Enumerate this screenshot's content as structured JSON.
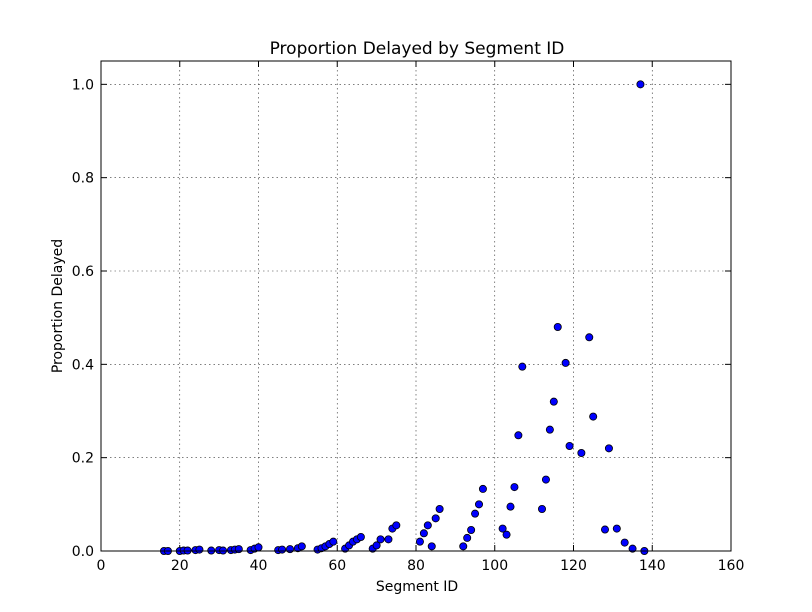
{
  "chart_data": {
    "type": "scatter",
    "title": "Proportion Delayed by Segment ID",
    "xlabel": "Segment ID",
    "ylabel": "Proportion Delayed",
    "xlim": [
      0,
      160
    ],
    "ylim": [
      0.0,
      1.05
    ],
    "xticks": [
      "0",
      "20",
      "40",
      "60",
      "80",
      "100",
      "120",
      "140",
      "160"
    ],
    "yticks": [
      "0.0",
      "0.2",
      "0.4",
      "0.6",
      "0.8",
      "1.0"
    ],
    "grid": true,
    "marker_color": "#0000ff",
    "points": [
      [
        16,
        0.0
      ],
      [
        17,
        0.0
      ],
      [
        20,
        0.0
      ],
      [
        21,
        0.001
      ],
      [
        22,
        0.001
      ],
      [
        24,
        0.002
      ],
      [
        25,
        0.003
      ],
      [
        28,
        0.001
      ],
      [
        30,
        0.002
      ],
      [
        31,
        0.001
      ],
      [
        33,
        0.002
      ],
      [
        34,
        0.003
      ],
      [
        35,
        0.004
      ],
      [
        38,
        0.002
      ],
      [
        39,
        0.005
      ],
      [
        40,
        0.008
      ],
      [
        45,
        0.002
      ],
      [
        46,
        0.003
      ],
      [
        48,
        0.004
      ],
      [
        50,
        0.006
      ],
      [
        51,
        0.01
      ],
      [
        55,
        0.003
      ],
      [
        56,
        0.006
      ],
      [
        57,
        0.01
      ],
      [
        58,
        0.015
      ],
      [
        59,
        0.02
      ],
      [
        62,
        0.005
      ],
      [
        63,
        0.012
      ],
      [
        64,
        0.02
      ],
      [
        65,
        0.025
      ],
      [
        66,
        0.03
      ],
      [
        69,
        0.005
      ],
      [
        70,
        0.012
      ],
      [
        71,
        0.025
      ],
      [
        73,
        0.025
      ],
      [
        74,
        0.048
      ],
      [
        75,
        0.055
      ],
      [
        81,
        0.02
      ],
      [
        82,
        0.038
      ],
      [
        83,
        0.055
      ],
      [
        84,
        0.01
      ],
      [
        85,
        0.07
      ],
      [
        86,
        0.09
      ],
      [
        92,
        0.01
      ],
      [
        93,
        0.028
      ],
      [
        94,
        0.045
      ],
      [
        95,
        0.08
      ],
      [
        96,
        0.1
      ],
      [
        97,
        0.133
      ],
      [
        102,
        0.048
      ],
      [
        103,
        0.035
      ],
      [
        104,
        0.095
      ],
      [
        105,
        0.137
      ],
      [
        106,
        0.248
      ],
      [
        107,
        0.395
      ],
      [
        112,
        0.09
      ],
      [
        113,
        0.153
      ],
      [
        114,
        0.26
      ],
      [
        115,
        0.32
      ],
      [
        116,
        0.48
      ],
      [
        118,
        0.403
      ],
      [
        119,
        0.225
      ],
      [
        122,
        0.21
      ],
      [
        124,
        0.458
      ],
      [
        125,
        0.288
      ],
      [
        128,
        0.046
      ],
      [
        129,
        0.22
      ],
      [
        131,
        0.048
      ],
      [
        133,
        0.018
      ],
      [
        135,
        0.005
      ],
      [
        137,
        1.0
      ],
      [
        138,
        0.0
      ]
    ]
  }
}
